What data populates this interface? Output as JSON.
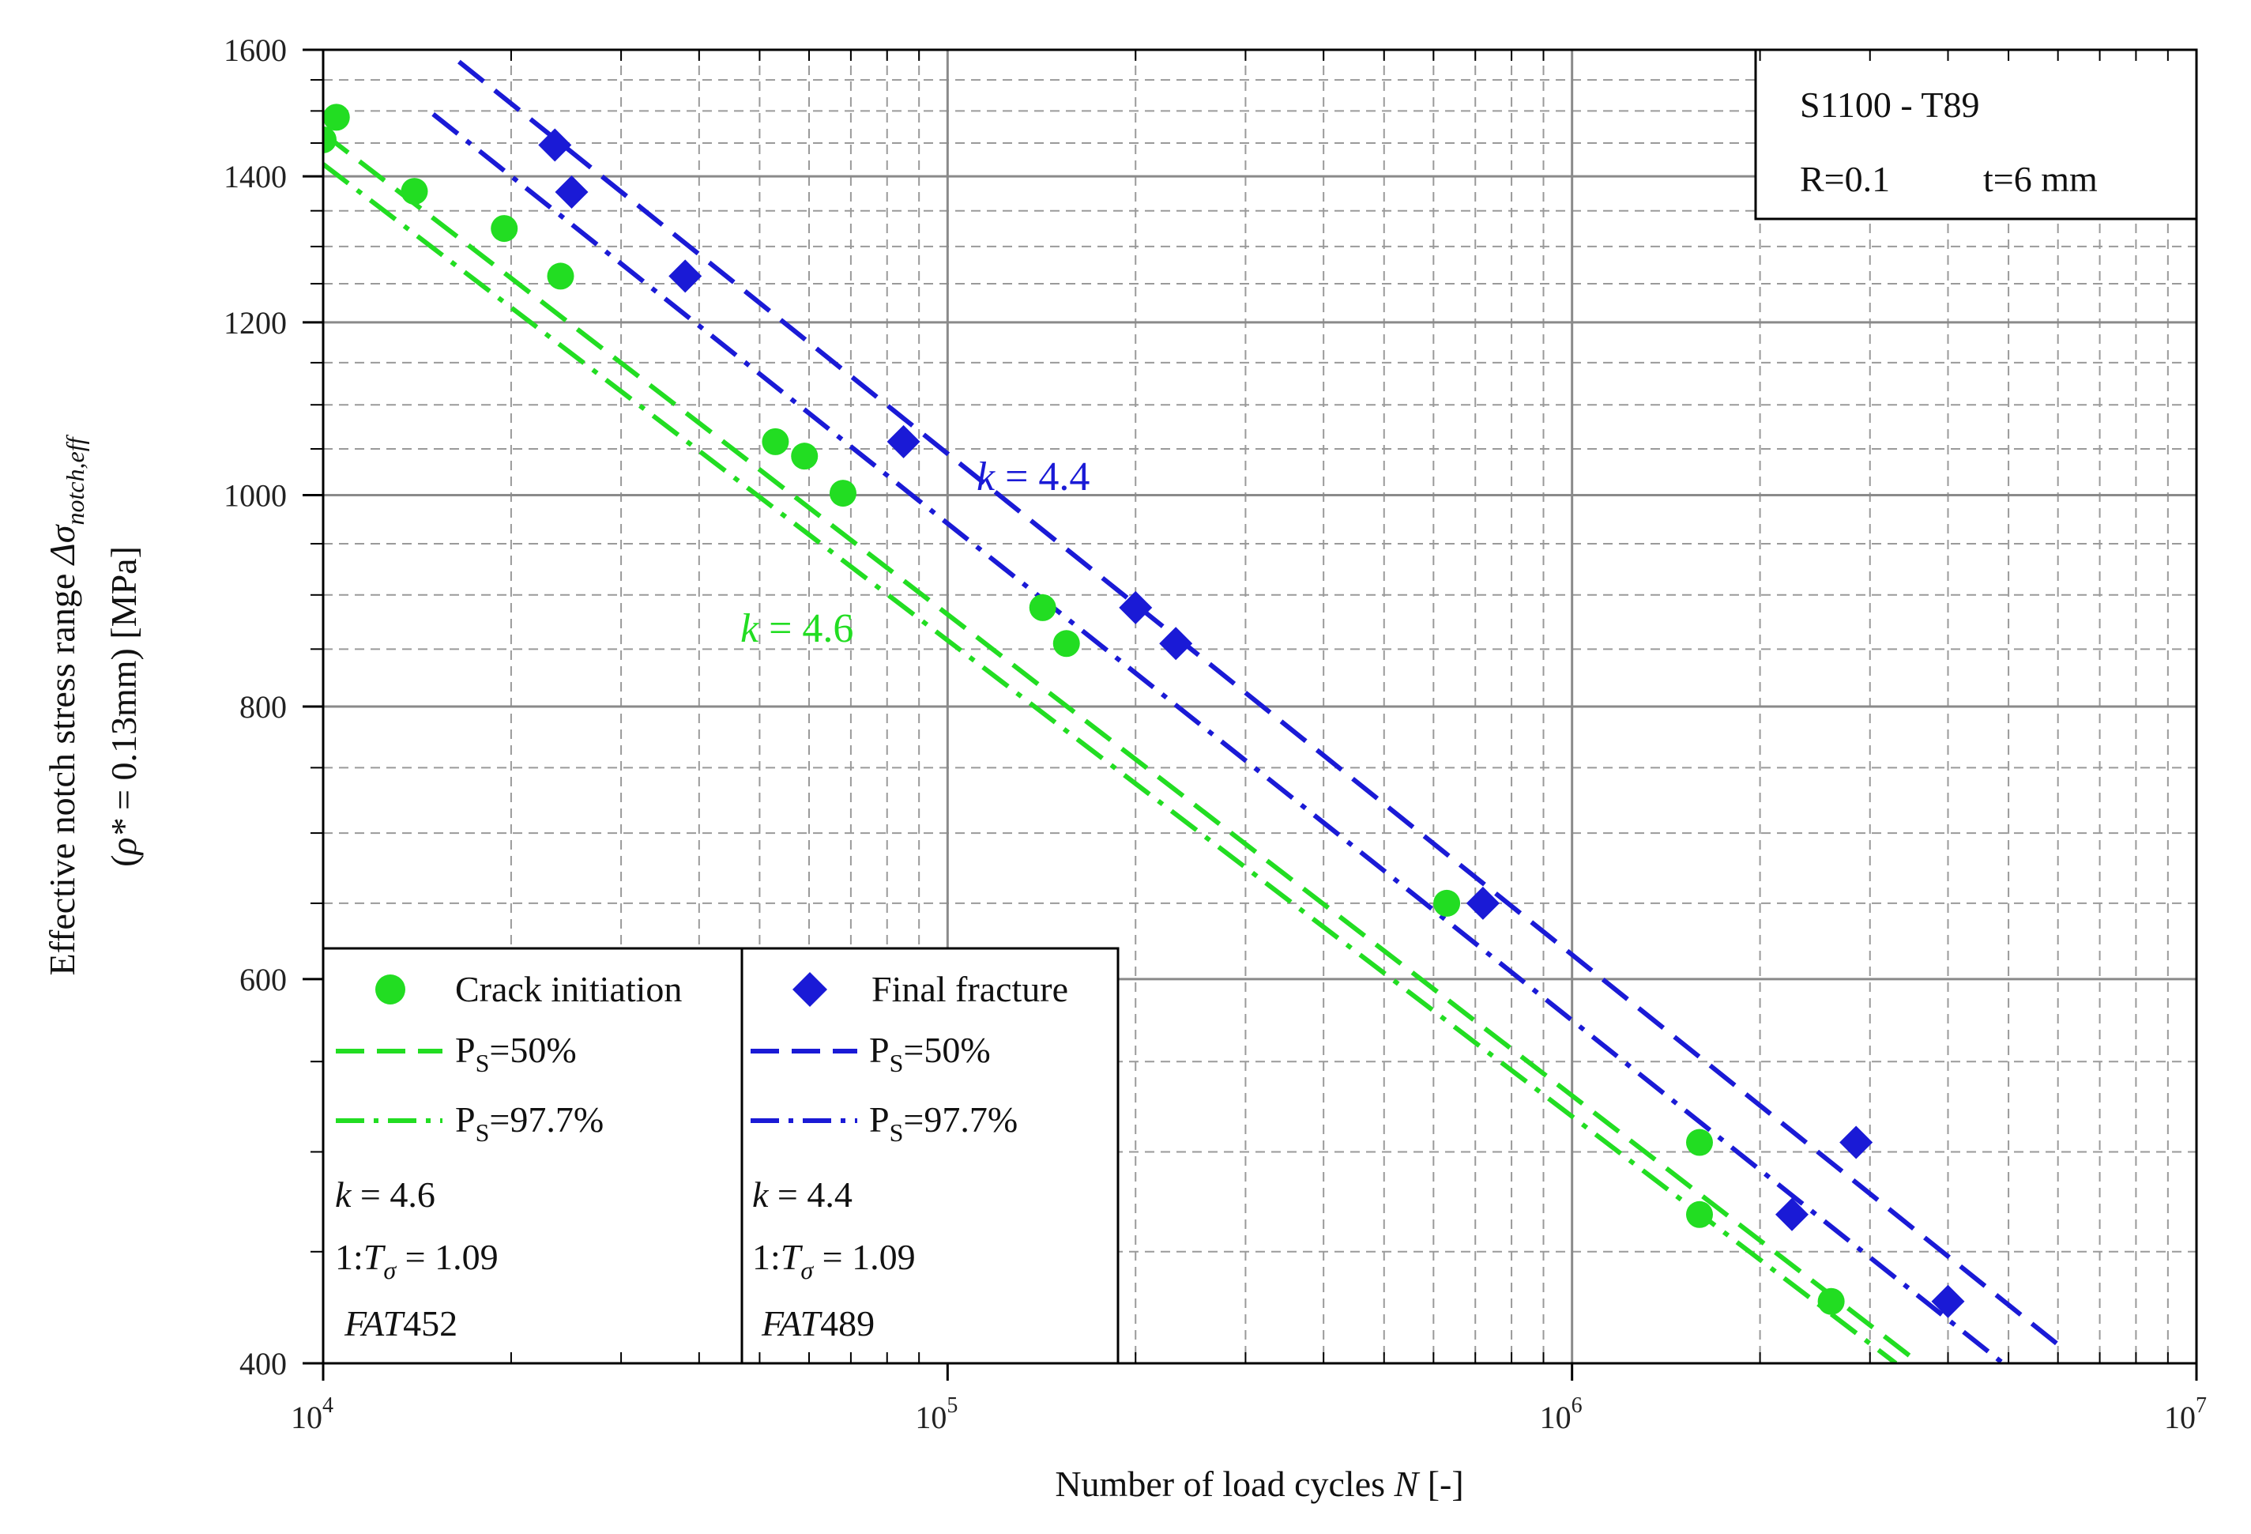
{
  "chart_data": {
    "type": "scatter",
    "xscale": "log",
    "yscale": "log",
    "xlim": [
      10000,
      10000000
    ],
    "ylim": [
      400,
      1600
    ],
    "xlabel": "Number of load cycles N [-]",
    "xlabel_parts": {
      "text": "Number of load cycles ",
      "var": "N",
      "unit": " [-]"
    },
    "ylabel": "Effective notch stress range Δσnotch,eff (ρ* = 0.13mm) [MPa]",
    "ylabel_parts": {
      "line1": "Effective notch stress range ",
      "sym": "Δσ",
      "sub": "notch,eff",
      "line2_a": "(",
      "rho": "ρ*",
      "line2_b": " = 0.13mm) [MPa]"
    },
    "x_ticks": [
      {
        "value": 10000,
        "base": "10",
        "exp": "4"
      },
      {
        "value": 100000,
        "base": "10",
        "exp": "5"
      },
      {
        "value": 1000000,
        "base": "10",
        "exp": "6"
      },
      {
        "value": 10000000,
        "base": "10",
        "exp": "7"
      }
    ],
    "y_ticks": [
      {
        "value": 400,
        "label": "400"
      },
      {
        "value": 600,
        "label": "600"
      },
      {
        "value": 800,
        "label": "800"
      },
      {
        "value": 1000,
        "label": "1000"
      },
      {
        "value": 1200,
        "label": "1200"
      },
      {
        "value": 1400,
        "label": "1400"
      },
      {
        "value": 1600,
        "label": "1600"
      }
    ],
    "y_minor": [
      450,
      500,
      550,
      650,
      700,
      750,
      850,
      900,
      950,
      1050,
      1100,
      1150,
      1250,
      1300,
      1350,
      1450,
      1500,
      1550
    ],
    "info_box": {
      "line1": "S1100 - T89",
      "line2a": "R=0.1",
      "line2b": "t=6 mm"
    },
    "colors": {
      "green": "#22dd22",
      "blue": "#1a1ad6"
    },
    "series": [
      {
        "name": "Crack initiation",
        "marker": "circle",
        "color": "#22dd22",
        "points": [
          [
            10000,
            1455
          ],
          [
            10500,
            1490
          ],
          [
            14000,
            1378
          ],
          [
            19500,
            1325
          ],
          [
            24000,
            1260
          ],
          [
            53000,
            1058
          ],
          [
            59000,
            1042
          ],
          [
            68000,
            1002
          ],
          [
            142000,
            888
          ],
          [
            155000,
            855
          ],
          [
            630000,
            650
          ],
          [
            1600000,
            505
          ],
          [
            1600000,
            468
          ],
          [
            2600000,
            427
          ]
        ]
      },
      {
        "name": "Final fracture",
        "marker": "diamond",
        "color": "#1a1ad6",
        "points": [
          [
            23500,
            1447
          ],
          [
            25000,
            1377
          ],
          [
            38000,
            1260
          ],
          [
            85000,
            1058
          ],
          [
            200000,
            888
          ],
          [
            232000,
            855
          ],
          [
            720000,
            650
          ],
          [
            2850000,
            505
          ],
          [
            2250000,
            468
          ],
          [
            4000000,
            427
          ]
        ]
      }
    ],
    "lines": [
      {
        "name": "Crack initiation PS=50%",
        "color": "#22dd22",
        "style": "dash",
        "from": [
          10000,
          1465
        ],
        "to": [
          3600000,
          400
        ]
      },
      {
        "name": "Crack initiation PS=97.7%",
        "color": "#22dd22",
        "style": "dashdot",
        "from": [
          10000,
          1418
        ],
        "to": [
          3300000,
          400
        ]
      },
      {
        "name": "Final fracture PS=50%",
        "color": "#1a1ad6",
        "style": "dash",
        "from": [
          16500,
          1580
        ],
        "to": [
          6000000,
          408
        ]
      },
      {
        "name": "Final fracture PS=97.7%",
        "color": "#1a1ad6",
        "style": "dashdot",
        "from": [
          15000,
          1495
        ],
        "to": [
          4900000,
          400
        ]
      }
    ],
    "annotations": [
      {
        "id": "ann-blue",
        "var": "k",
        "text": " = 4.4",
        "color": "#1a1ad6"
      },
      {
        "id": "ann-green",
        "var": "k",
        "text": " = 4.6",
        "color": "#22dd22"
      }
    ],
    "legend": {
      "position": "bottom-left",
      "left": {
        "marker_label": "Crack initiation",
        "line50_label": {
          "p": "P",
          "sub": "S",
          "rest": "=50%"
        },
        "line977_label": {
          "p": "P",
          "sub": "S",
          "rest": "=97.7%"
        },
        "k": {
          "var": "k",
          "text": " = 4.6"
        },
        "t": {
          "pre": "1:",
          "var": "T",
          "sub": "σ",
          "text": " = 1.09"
        },
        "fat": {
          "var": "FAT",
          "num": "452"
        }
      },
      "right": {
        "marker_label": "Final fracture",
        "line50_label": {
          "p": "P",
          "sub": "S",
          "rest": "=50%"
        },
        "line977_label": {
          "p": "P",
          "sub": "S",
          "rest": "=97.7%"
        },
        "k": {
          "var": "k",
          "text": " = 4.4"
        },
        "t": {
          "pre": "1:",
          "var": "T",
          "sub": "σ",
          "text": " = 1.09"
        },
        "fat": {
          "var": "FAT",
          "num": "489"
        }
      }
    }
  }
}
